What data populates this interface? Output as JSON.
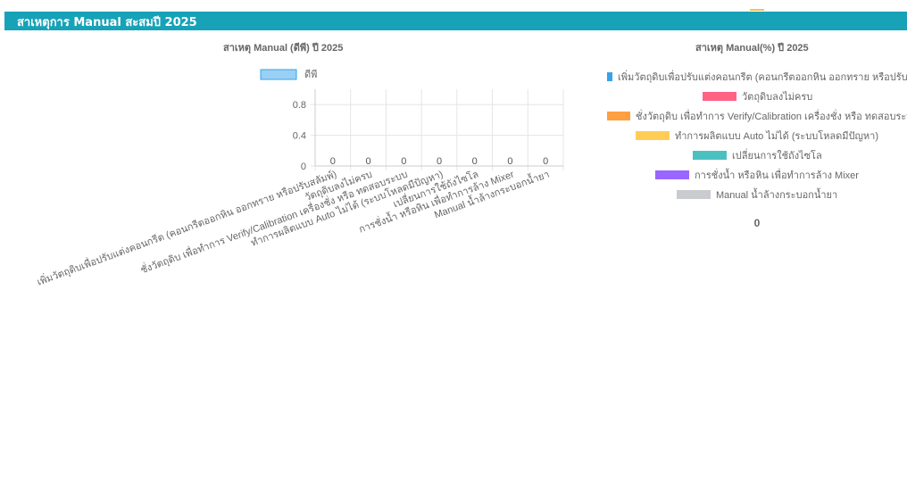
{
  "header": {
    "title": "สาเหตุการ Manual สะสมปี 2025",
    "color": "#17a2b8"
  },
  "chart_data": [
    {
      "type": "bar",
      "title": "สาเหตุ Manual (ดีพี) ปี 2025",
      "categories": [
        "เพิ่มวัตถุดิบเพื่อปรับแต่งคอนกรีต (คอนกรีตออกหิน ออกทราย หรือปรับสลัมพ์)",
        "วัตถุดิบลงไม่ครบ",
        "ชั่งวัตถุดิบ เพื่อทำการ Verify/Calibration เครื่องชั่ง หรือ ทดสอบระบบ",
        "ทำการผลิตแบบ Auto ไม่ได้ (ระบบโหลดมีปัญหา)",
        "เปลี่ยนการใช้ถังไซโล",
        "การชั่งน้ำ หรือหิน เพื่อทำการล้าง Mixer",
        "Manual น้ำล้างกระบอกน้ำยา"
      ],
      "series": [
        {
          "name": "ดีพี",
          "values": [
            0,
            0,
            0,
            0,
            0,
            0,
            0
          ],
          "color": "#9ad0f5",
          "border": "#36a2eb"
        }
      ],
      "data_labels": [
        "0",
        "0",
        "0",
        "0",
        "0",
        "0",
        "0"
      ],
      "y_ticks": [
        "0",
        "0.4",
        "0.8"
      ],
      "ylim": [
        0,
        1
      ],
      "grid": true,
      "legend": "top"
    },
    {
      "type": "pie",
      "title": "สาเหตุ Manual(%) ปี 2025",
      "labels": [
        "เพิ่มวัตถุดิบเพื่อปรับแต่งคอนกรีต (คอนกรีตออกหิน ออกทราย หรือปรับสลัมพ์)",
        "วัตถุดิบลงไม่ครบ",
        "ชั่งวัตถุดิบ เพื่อทำการ Verify/Calibration เครื่องชั่ง หรือ ทดสอบระบบ",
        "ทำการผลิตแบบ Auto ไม่ได้ (ระบบโหลดมีปัญหา)",
        "เปลี่ยนการใช้ถังไซโล",
        "การชั่งน้ำ หรือหิน เพื่อทำการล้าง Mixer",
        "Manual น้ำล้างกระบอกน้ำยา"
      ],
      "values": [
        0,
        0,
        0,
        0,
        0,
        0,
        0
      ],
      "colors": [
        "#36a2eb",
        "#ff6384",
        "#ff9f40",
        "#ffcd56",
        "#4bc0c0",
        "#9966ff",
        "#c9cbcf"
      ],
      "total": "0",
      "legend": "top"
    }
  ]
}
